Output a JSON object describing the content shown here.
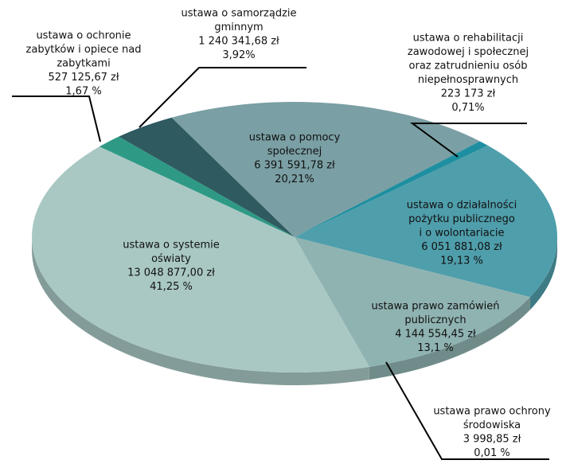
{
  "chart_data": {
    "type": "pie",
    "categories": [
      [
        "ustawa o ochronie",
        "zabytków i opiece nad",
        "zabytkami"
      ],
      [
        "ustawa o samorządzie",
        "gminnym"
      ],
      [
        "ustawa o pomocy",
        "społecznej"
      ],
      [
        "ustawa o rehabilitacji",
        "zawodowej i społecznej",
        "oraz zatrudnieniu osób",
        "niepełnosprawnych"
      ],
      [
        "ustawa o działalności",
        "pożytku publicznego",
        "i o wolontariacie"
      ],
      [
        "ustawa prawo zamówień",
        "publicznych"
      ],
      [
        "ustawa prawo ochrony",
        "środowiska"
      ],
      [
        "ustawa o systemie",
        "oświaty"
      ]
    ],
    "values": [
      527125.67,
      1240341.68,
      6391591.78,
      223173,
      6051881.08,
      4144554.45,
      3998.85,
      13048877.0
    ],
    "value_labels": [
      "527 125,67 zł",
      "1 240 341,68 zł",
      "6 391 591,78 zł",
      "223 173 zł",
      "6 051 881,08 zł",
      "4 144 554,45 zł",
      "3 998,85 zł",
      "13 048 877,00 zł"
    ],
    "percentages": [
      1.67,
      3.92,
      20.21,
      0.71,
      19.13,
      13.1,
      0.01,
      41.25
    ],
    "percentage_labels": [
      "1,67 %",
      "3,92%",
      "20,21%",
      "0,71%",
      "19,13 %",
      "13,1 %",
      "0,01 %",
      "41,25 %"
    ],
    "colors": [
      "#2e9a86",
      "#2e5a60",
      "#7a9fa4",
      "#1e8fa0",
      "#4f9eab",
      "#8fb3b1",
      "#6f9a98",
      "#a9c8c4"
    ]
  }
}
